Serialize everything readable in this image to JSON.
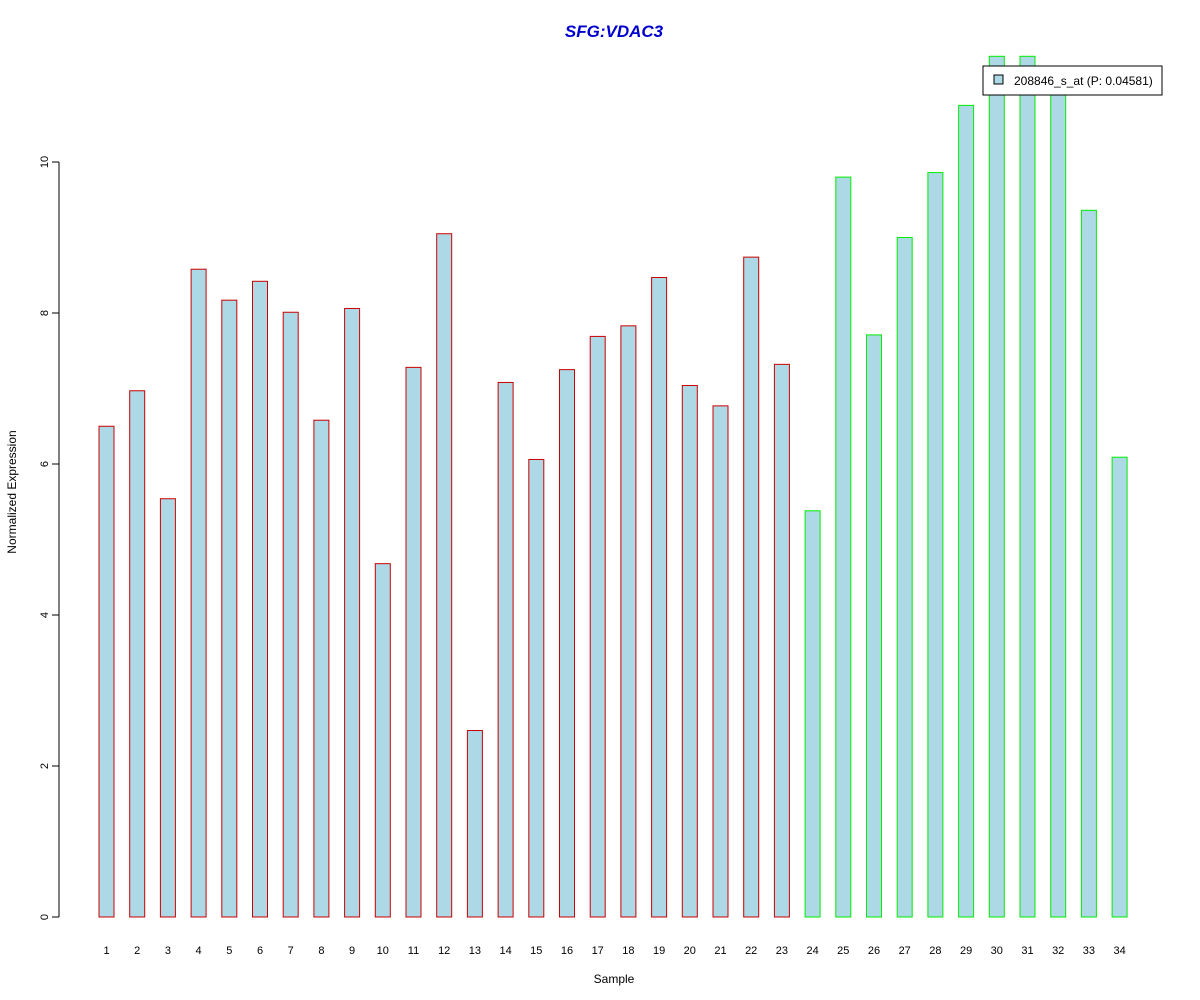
{
  "chart_data": {
    "type": "bar",
    "title": "SFG:VDAC3",
    "xlabel": "Sample",
    "ylabel": "Normalized Expression",
    "ylim": [
      0,
      11.4
    ],
    "yticks": [
      0,
      2,
      4,
      6,
      8,
      10
    ],
    "grid": false,
    "legend": {
      "placement": "top-right",
      "label": "208846_s_at (P: 0.04581)",
      "swatch_color": "#add8e6"
    },
    "fill_color": "#add8e6",
    "group_colors": {
      "group1": "#cc0000",
      "group2": "#00ee00"
    },
    "categories": [
      "1",
      "2",
      "3",
      "4",
      "5",
      "6",
      "7",
      "8",
      "9",
      "10",
      "11",
      "12",
      "13",
      "14",
      "15",
      "16",
      "17",
      "18",
      "19",
      "20",
      "21",
      "22",
      "23",
      "24",
      "25",
      "26",
      "27",
      "28",
      "29",
      "30",
      "31",
      "32",
      "33",
      "34"
    ],
    "values": [
      6.5,
      6.97,
      5.54,
      8.58,
      8.17,
      8.42,
      8.01,
      6.58,
      8.06,
      4.68,
      7.28,
      9.05,
      2.47,
      7.08,
      6.06,
      7.25,
      7.69,
      7.83,
      8.47,
      7.04,
      6.77,
      8.74,
      7.32,
      5.38,
      9.8,
      7.71,
      9.0,
      9.86,
      10.75,
      11.4,
      11.4,
      11.1,
      9.36,
      6.09
    ],
    "groups": [
      "group1",
      "group1",
      "group1",
      "group1",
      "group1",
      "group1",
      "group1",
      "group1",
      "group1",
      "group1",
      "group1",
      "group1",
      "group1",
      "group1",
      "group1",
      "group1",
      "group1",
      "group1",
      "group1",
      "group1",
      "group1",
      "group1",
      "group1",
      "group2",
      "group2",
      "group2",
      "group2",
      "group2",
      "group2",
      "group2",
      "group2",
      "group2",
      "group2",
      "group2"
    ]
  }
}
